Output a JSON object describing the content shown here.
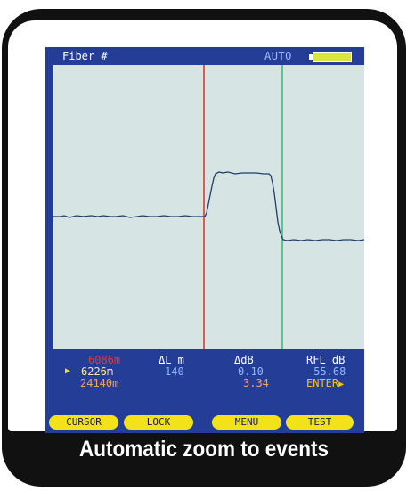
{
  "titlebar": {
    "label": "Fiber #",
    "mode": "AUTO",
    "battery_icon": "battery-icon",
    "battery_color": "#d9e63b"
  },
  "colors": {
    "device_background": "#243d97",
    "plot_background": "#d7e4e4",
    "trace": "#1f3f6a",
    "cursor_a": "#e03a26",
    "cursor_b": "#2ec27a",
    "softkey": "#f2e21a"
  },
  "readout": {
    "cursor_a_distance": "6086m",
    "cursor_b_distance": "6226m",
    "total_distance": "24140m",
    "delta_l_header": "ΔL m",
    "delta_l_value": "140",
    "delta_db_header": "ΔdB",
    "delta_db_value": "0.10",
    "delta_db_total": "3.34",
    "rfl_header": "RFL dB",
    "rfl_value": "-55.68",
    "enter_label": "ENTER"
  },
  "softkeys": [
    "CURSOR",
    "LOCK",
    "MENU",
    "TEST"
  ],
  "caption": "Automatic zoom to events"
}
